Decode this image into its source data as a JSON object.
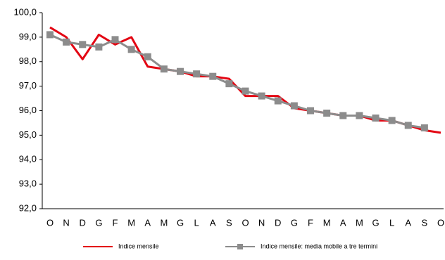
{
  "chart_data": {
    "type": "line",
    "categories": [
      "O",
      "N",
      "D",
      "G",
      "F",
      "M",
      "A",
      "M",
      "G",
      "L",
      "A",
      "S",
      "O",
      "N",
      "D",
      "G",
      "F",
      "M",
      "A",
      "M",
      "G",
      "L",
      "A",
      "S",
      "O"
    ],
    "series": [
      {
        "name": "Indice mensile",
        "color": "#e30613",
        "values": [
          99.4,
          99.0,
          98.1,
          99.1,
          98.7,
          99.0,
          97.8,
          97.7,
          97.6,
          97.4,
          97.4,
          97.3,
          96.6,
          96.6,
          96.6,
          96.1,
          96.0,
          95.9,
          95.8,
          95.8,
          95.6,
          95.6,
          95.4,
          95.2,
          95.1
        ]
      },
      {
        "name": "Indice mensile: media mobile a tre termini",
        "color": "#8c8c8c",
        "marker": "square",
        "values": [
          99.1,
          98.8,
          98.7,
          98.6,
          98.9,
          98.5,
          98.2,
          97.7,
          97.6,
          97.5,
          97.4,
          97.1,
          96.8,
          96.6,
          96.4,
          96.2,
          96.0,
          95.9,
          95.8,
          95.8,
          95.7,
          95.6,
          95.4,
          95.3,
          null
        ]
      }
    ],
    "ylim": [
      92,
      100
    ],
    "yticks": [
      {
        "value": 92,
        "label": "92,0"
      },
      {
        "value": 93,
        "label": "93,0"
      },
      {
        "value": 94,
        "label": "94,0"
      },
      {
        "value": 95,
        "label": "95,0"
      },
      {
        "value": 96,
        "label": "96,0"
      },
      {
        "value": 97,
        "label": "97,0"
      },
      {
        "value": 98,
        "label": "98,0"
      },
      {
        "value": 99,
        "label": "99,0"
      },
      {
        "value": 100,
        "label": "100,0"
      }
    ],
    "grid": false,
    "legend": "bottom"
  }
}
